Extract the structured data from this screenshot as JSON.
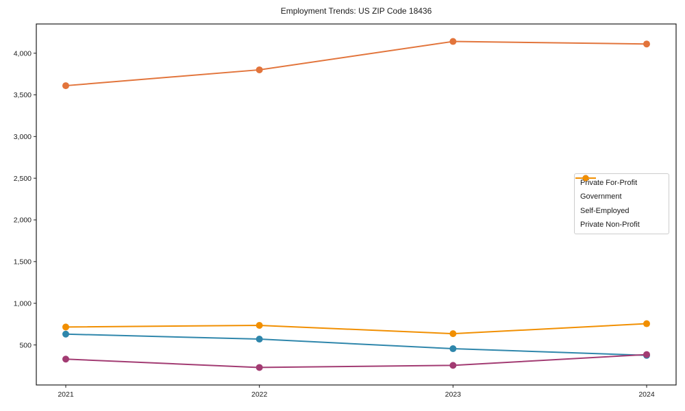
{
  "chart_data": {
    "type": "line",
    "title": "Employment Trends: US ZIP Code 18436",
    "xlabel": "",
    "ylabel": "",
    "x": [
      2021,
      2022,
      2023,
      2024
    ],
    "series": [
      {
        "name": "Private For-Profit",
        "color": "#E2743B",
        "values": [
          3610,
          3800,
          4140,
          4110
        ]
      },
      {
        "name": "Government",
        "color": "#2E86AB",
        "values": [
          630,
          570,
          455,
          375
        ]
      },
      {
        "name": "Self-Employed",
        "color": "#A23B72",
        "values": [
          330,
          230,
          255,
          385
        ]
      },
      {
        "name": "Private Non-Profit",
        "color": "#F18F01",
        "values": [
          715,
          735,
          635,
          755
        ]
      }
    ],
    "ylim": [
      20,
      4350
    ],
    "yticks": [
      500,
      1000,
      1500,
      2000,
      2500,
      3000,
      3500,
      4000
    ],
    "ytick_labels": [
      "500",
      "1,000",
      "1,500",
      "2,000",
      "2,500",
      "3,000",
      "3,500",
      "4,000"
    ],
    "grid": false,
    "legend_position": "center-right",
    "marker": "circle",
    "frame_color": "#1a1a1a",
    "background_color": "#ffffff"
  }
}
